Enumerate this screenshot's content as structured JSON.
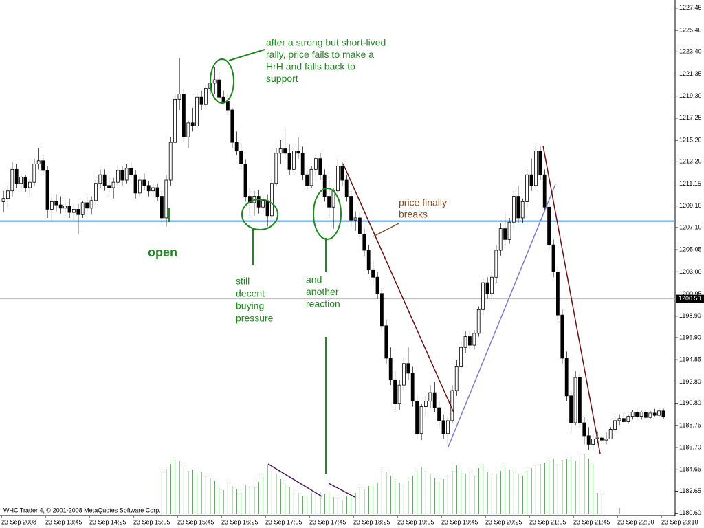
{
  "chart_data": {
    "type": "candlestick",
    "footer": "WHC Trader 4, © 2001-2008 MetaQuotes Software Corp.",
    "categories": [
      "23 Sep 2008",
      null,
      null,
      null,
      null,
      null,
      null,
      null,
      null,
      null,
      "23 Sep 13:45",
      null,
      null,
      null,
      null,
      null,
      null,
      null,
      null,
      null,
      "23 Sep 14:25",
      null,
      null,
      null,
      null,
      null,
      null,
      null,
      null,
      null,
      "23 Sep 15:05",
      null,
      null,
      null,
      null,
      null,
      null,
      null,
      null,
      null,
      "23 Sep 15:45",
      null,
      null,
      null,
      null,
      null,
      null,
      null,
      null,
      null,
      "23 Sep 16:25",
      null,
      null,
      null,
      null,
      null,
      null,
      null,
      null,
      null,
      "23 Sep 17:05",
      null,
      null,
      null,
      null,
      null,
      null,
      null,
      null,
      null,
      "23 Sep 17:45",
      null,
      null,
      null,
      null,
      null,
      null,
      null,
      null,
      null,
      "23 Sep 18:25",
      null,
      null,
      null,
      null,
      null,
      null,
      null,
      null,
      null,
      "23 Sep 19:05",
      null,
      null,
      null,
      null,
      null,
      null,
      null,
      null,
      null,
      "23 Sep 19:45",
      null,
      null,
      null,
      null,
      null,
      null,
      null,
      null,
      null,
      "23 Sep 20:25",
      null,
      null,
      null,
      null,
      null,
      null,
      null,
      null,
      null,
      "23 Sep 21:05",
      null,
      null,
      null,
      null,
      null,
      null,
      null,
      null,
      null,
      "23 Sep 21:45",
      null,
      null,
      null,
      null,
      null,
      null,
      null,
      null,
      null,
      "23 Sep 22:30",
      null,
      null,
      null,
      null,
      null,
      null,
      null,
      null,
      null,
      "23 Sep 23:10"
    ],
    "candles": [
      [
        1209.5,
        1210.5,
        1208.5,
        1209.8
      ],
      [
        1209.8,
        1211,
        1209,
        1210.5
      ],
      [
        1210.5,
        1213.2,
        1210,
        1212.5
      ],
      [
        1212.5,
        1213,
        1210.8,
        1211.2
      ],
      [
        1211.2,
        1212.2,
        1210.5,
        1211.8
      ],
      [
        1211.8,
        1212,
        1210.4,
        1210.8
      ],
      [
        1210.8,
        1211.6,
        1210.2,
        1211.3
      ],
      [
        1211.3,
        1213.5,
        1211,
        1213
      ],
      [
        1213,
        1214.5,
        1212.5,
        1213.3
      ],
      [
        1213.3,
        1213.8,
        1212,
        1212.4
      ],
      [
        1212.4,
        1212.8,
        1208,
        1208.8
      ],
      [
        1208.8,
        1210,
        1207.8,
        1209.5
      ],
      [
        1209.5,
        1210.2,
        1208.6,
        1209.2
      ],
      [
        1209.2,
        1210,
        1208.4,
        1208.9
      ],
      [
        1208.9,
        1209.5,
        1208.2,
        1209.1
      ],
      [
        1209.1,
        1209.8,
        1208,
        1208.5
      ],
      [
        1208.5,
        1209.2,
        1207.8,
        1208.8
      ],
      [
        1208.8,
        1209.3,
        1206.5,
        1208.3
      ],
      [
        1208.3,
        1209.6,
        1208,
        1209.4
      ],
      [
        1209.4,
        1209.9,
        1208.5,
        1208.9
      ],
      [
        1208.9,
        1210,
        1208.3,
        1209.6
      ],
      [
        1209.6,
        1211.5,
        1209.2,
        1211.2
      ],
      [
        1211.2,
        1212.5,
        1210.8,
        1212
      ],
      [
        1212,
        1212.5,
        1210.5,
        1211
      ],
      [
        1211,
        1211.8,
        1210.3,
        1210.8
      ],
      [
        1210.8,
        1211.7,
        1209.8,
        1211.3
      ],
      [
        1211.3,
        1212.8,
        1211,
        1212.4
      ],
      [
        1212.4,
        1212.8,
        1211,
        1211.5
      ],
      [
        1211.5,
        1213,
        1211.2,
        1212.6
      ],
      [
        1212.6,
        1213.2,
        1211.8,
        1212
      ],
      [
        1212,
        1212.4,
        1209.8,
        1210.3
      ],
      [
        1210.3,
        1211.8,
        1210,
        1211.5
      ],
      [
        1211.5,
        1212.1,
        1210.6,
        1211
      ],
      [
        1211,
        1211.4,
        1210,
        1210.5
      ],
      [
        1210.5,
        1211.2,
        1210,
        1210.8
      ],
      [
        1210.8,
        1211.2,
        1209.6,
        1210
      ],
      [
        1210,
        1210.5,
        1207.5,
        1208
      ],
      [
        1208,
        1212,
        1207.2,
        1211.5
      ],
      [
        1211.5,
        1215.5,
        1211,
        1215
      ],
      [
        1215,
        1219.5,
        1214.8,
        1219
      ],
      [
        1219,
        1222.8,
        1218,
        1219.5
      ],
      [
        1219.5,
        1220,
        1215,
        1215.5
      ],
      [
        1215.5,
        1217,
        1214.5,
        1216.8
      ],
      [
        1216.8,
        1218.2,
        1216,
        1216.5
      ],
      [
        1216.5,
        1219.6,
        1216.2,
        1219.2
      ],
      [
        1219.2,
        1219.8,
        1218,
        1218.5
      ],
      [
        1218.5,
        1220.3,
        1218.2,
        1220
      ],
      [
        1220,
        1221.3,
        1219.5,
        1220.5
      ],
      [
        1220.5,
        1222,
        1219.5,
        1220.8
      ],
      [
        1220.8,
        1221.5,
        1218.8,
        1219.2
      ],
      [
        1219.2,
        1219.8,
        1218.5,
        1218.8
      ],
      [
        1218.8,
        1219.5,
        1217.5,
        1218
      ],
      [
        1218,
        1218.2,
        1214.5,
        1215
      ],
      [
        1215,
        1216,
        1213.8,
        1214.2
      ],
      [
        1214.2,
        1214.8,
        1212.5,
        1213
      ],
      [
        1213,
        1213.4,
        1209.5,
        1210
      ],
      [
        1210,
        1210.8,
        1208,
        1209.4
      ],
      [
        1209.4,
        1210.5,
        1208.2,
        1210
      ],
      [
        1210,
        1210.6,
        1208.4,
        1209
      ],
      [
        1209,
        1210,
        1208.5,
        1209.6
      ],
      [
        1209.6,
        1210.2,
        1207.2,
        1208.2
      ],
      [
        1208.2,
        1211.6,
        1207.8,
        1211.2
      ],
      [
        1211.2,
        1214.5,
        1211,
        1214
      ],
      [
        1214,
        1215.2,
        1213,
        1214.4
      ],
      [
        1214.4,
        1216.2,
        1213.5,
        1214
      ],
      [
        1214,
        1214.8,
        1212,
        1212.5
      ],
      [
        1212.5,
        1214.5,
        1212.2,
        1214.2
      ],
      [
        1214.2,
        1215.5,
        1213.5,
        1214
      ],
      [
        1214,
        1214.6,
        1211.5,
        1212
      ],
      [
        1212,
        1212.6,
        1210.5,
        1211
      ],
      [
        1211,
        1212.8,
        1210.8,
        1212.5
      ],
      [
        1212.5,
        1213.8,
        1211.8,
        1213.5
      ],
      [
        1213.5,
        1214,
        1211.5,
        1212
      ],
      [
        1212,
        1212.5,
        1209.5,
        1210
      ],
      [
        1210,
        1211.5,
        1208,
        1209
      ],
      [
        1209,
        1210.8,
        1207,
        1210.5
      ],
      [
        1210.5,
        1213.5,
        1210.2,
        1212.8
      ],
      [
        1212.8,
        1213.2,
        1211,
        1211.5
      ],
      [
        1211.5,
        1212,
        1209.5,
        1210
      ],
      [
        1210,
        1210.5,
        1207.2,
        1207.8
      ],
      [
        1207.8,
        1208.6,
        1206.8,
        1208
      ],
      [
        1208,
        1208.5,
        1206,
        1206.5
      ],
      [
        1206.5,
        1207,
        1204.5,
        1205
      ],
      [
        1205,
        1205.5,
        1202.8,
        1203.2
      ],
      [
        1203.2,
        1204,
        1202,
        1202.5
      ],
      [
        1202.5,
        1203,
        1200.5,
        1201
      ],
      [
        1201,
        1201.5,
        1197.5,
        1198
      ],
      [
        1198,
        1198.6,
        1194.5,
        1195
      ],
      [
        1195,
        1196,
        1192.5,
        1193
      ],
      [
        1193,
        1193.8,
        1190,
        1190.8
      ],
      [
        1190.8,
        1193,
        1190.2,
        1192.5
      ],
      [
        1192.5,
        1195,
        1192,
        1194.5
      ],
      [
        1194.5,
        1196,
        1193,
        1193.6
      ],
      [
        1193.6,
        1194.2,
        1190.5,
        1191
      ],
      [
        1191,
        1191.6,
        1187.5,
        1188
      ],
      [
        1188,
        1190.8,
        1187.4,
        1190.5
      ],
      [
        1190.5,
        1191.5,
        1189.6,
        1191
      ],
      [
        1191,
        1192.5,
        1190.4,
        1191.8
      ],
      [
        1191.8,
        1192.8,
        1190,
        1190.4
      ],
      [
        1190.4,
        1191,
        1188.6,
        1189.2
      ],
      [
        1189.2,
        1189.8,
        1187.5,
        1188
      ],
      [
        1188,
        1189.6,
        1187,
        1189.2
      ],
      [
        1189.2,
        1192.5,
        1189,
        1192
      ],
      [
        1192,
        1194.8,
        1191.5,
        1194.2
      ],
      [
        1194.2,
        1196.5,
        1194,
        1196
      ],
      [
        1196,
        1197.5,
        1195.5,
        1197
      ],
      [
        1197,
        1197.5,
        1195.8,
        1196.2
      ],
      [
        1196.2,
        1197.6,
        1195.8,
        1197.3
      ],
      [
        1197.3,
        1199.8,
        1197,
        1199.5
      ],
      [
        1199.5,
        1202.5,
        1199,
        1202
      ],
      [
        1202,
        1202.5,
        1200.5,
        1201
      ],
      [
        1201,
        1203,
        1200.5,
        1202.5
      ],
      [
        1202.5,
        1205.5,
        1202,
        1205
      ],
      [
        1205,
        1207.5,
        1204.5,
        1207
      ],
      [
        1207,
        1208.6,
        1205.5,
        1206
      ],
      [
        1206,
        1208,
        1205.6,
        1207.6
      ],
      [
        1207.6,
        1210.5,
        1207,
        1210
      ],
      [
        1210,
        1211,
        1207.5,
        1208
      ],
      [
        1208,
        1209.8,
        1207.5,
        1209.5
      ],
      [
        1209.5,
        1212.5,
        1209,
        1212
      ],
      [
        1212,
        1213.5,
        1210.5,
        1211
      ],
      [
        1211,
        1214.6,
        1210.8,
        1214.2
      ],
      [
        1214.2,
        1214.6,
        1211.5,
        1212
      ],
      [
        1212,
        1212.5,
        1208.5,
        1209
      ],
      [
        1209,
        1209.5,
        1205,
        1205.5
      ],
      [
        1205.5,
        1206,
        1202.5,
        1203
      ],
      [
        1203,
        1203.5,
        1198.5,
        1199
      ],
      [
        1199,
        1199.5,
        1194.5,
        1195
      ],
      [
        1195,
        1195.6,
        1191,
        1191.5
      ],
      [
        1191.5,
        1192,
        1188.2,
        1189
      ],
      [
        1189,
        1193.8,
        1188.8,
        1193.2
      ],
      [
        1193.2,
        1193.6,
        1188.5,
        1189
      ],
      [
        1189,
        1189.5,
        1187,
        1187.8
      ],
      [
        1187.8,
        1188.6,
        1186.5,
        1187
      ],
      [
        1187,
        1187.9,
        1186.4,
        1187.5
      ],
      [
        1187.5,
        1188.2,
        1187.1,
        1187.6
      ],
      [
        1187.6,
        1187.8,
        1187.2,
        1187.4
      ],
      [
        1187.4,
        1188.1,
        1187,
        1187.5
      ],
      [
        1187.5,
        1188.6,
        1187.5,
        1188.4
      ],
      [
        1188.4,
        1189.5,
        1188.2,
        1189.2
      ],
      [
        1189.2,
        1189.8,
        1188.8,
        1189.4
      ],
      [
        1189.4,
        1189.9,
        1189,
        1189.1
      ],
      [
        1189.1,
        1189.8,
        1188.9,
        1189.6
      ],
      [
        1189.6,
        1190.2,
        1189.3,
        1190
      ],
      [
        1190,
        1190.3,
        1189.4,
        1189.6
      ],
      [
        1189.6,
        1190.1,
        1189.3,
        1190
      ],
      [
        1190,
        1190.2,
        1189.4,
        1189.5
      ],
      [
        1189.5,
        1190.1,
        1189.4,
        1189.9
      ],
      [
        1189.9,
        1190.3,
        1189.6,
        1189.7
      ],
      [
        1189.7,
        1190.4,
        1189.5,
        1190.1
      ],
      [
        1190.1,
        1190.3,
        1189.4,
        1189.6
      ]
    ],
    "volume": [
      0,
      0,
      0,
      0,
      0,
      0,
      0,
      0,
      0,
      0,
      0,
      0,
      0,
      0,
      0,
      0,
      0,
      0,
      0,
      0,
      0,
      0,
      0,
      0,
      0,
      0,
      0,
      0,
      0,
      0,
      0,
      0,
      0,
      0,
      0,
      0,
      60,
      65,
      72,
      80,
      76,
      68,
      62,
      64,
      58,
      60,
      54,
      52,
      48,
      40,
      34,
      44,
      40,
      36,
      30,
      42,
      40,
      38,
      46,
      55,
      70,
      62,
      58,
      50,
      45,
      38,
      33,
      30,
      26,
      22,
      30,
      28,
      32,
      28,
      30,
      24,
      22,
      20,
      25,
      28,
      30,
      38,
      36,
      40,
      42,
      44,
      65,
      60,
      55,
      50,
      45,
      42,
      48,
      55,
      60,
      68,
      64,
      58,
      52,
      46,
      50,
      56,
      62,
      70,
      64,
      58,
      60,
      54,
      66,
      72,
      60,
      55,
      58,
      62,
      68,
      64,
      60,
      58,
      55,
      62,
      66,
      70,
      72,
      74,
      76,
      80,
      72,
      78,
      80,
      82,
      76,
      84,
      86,
      80,
      72,
      30,
      28,
      0,
      0,
      0,
      8,
      0,
      0,
      0,
      0,
      0,
      0,
      0,
      0,
      0,
      0
    ],
    "volume_color": "#2e7d2e",
    "ylim": [
      1180.4,
      1228.2
    ],
    "yticks": [
      1227.45,
      {
        "value": 1225.4,
        "label": "1225.40"
      },
      {
        "value": 1223.4,
        "label": "1223.40"
      },
      1221.35,
      {
        "value": 1219.3,
        "label": "1219.30"
      },
      1217.25,
      {
        "value": 1215.2,
        "label": "1215.20"
      },
      {
        "value": 1213.2,
        "label": "1213.20"
      },
      1211.15,
      {
        "value": 1209.1,
        "label": "1209.10"
      },
      {
        "value": 1207.1,
        "label": "1207.10"
      },
      1205.05,
      {
        "value": 1203,
        "label": "1203.00"
      },
      1200.95,
      {
        "value": 1198.9,
        "label": "1198.90"
      },
      {
        "value": 1196.9,
        "label": "1196.90"
      },
      1194.85,
      {
        "value": 1192.8,
        "label": "1192.80"
      },
      {
        "value": 1190.8,
        "label": "1190.80"
      },
      1188.75,
      {
        "value": 1186.7,
        "label": "1186.70"
      },
      1184.65,
      1182.65,
      {
        "value": 1180.6,
        "label": "1180.60"
      }
    ],
    "support_level": {
      "value": 1207.7,
      "color": "#3d94e8"
    },
    "current_price": {
      "value": 1200.5,
      "label": "1200.50"
    },
    "annotations": [
      {
        "lines": [
          "after a strong but short-lived",
          "rally, price fails to make a",
          "HrH and falls back to",
          "support"
        ],
        "color": "#1e8a1e"
      },
      {
        "lines": [
          "open"
        ],
        "color": "#1e8a1e"
      },
      {
        "lines": [
          "still",
          "decent",
          "buying",
          "pressure"
        ],
        "color": "#1e8a1e"
      },
      {
        "lines": [
          "and",
          "another",
          "reaction"
        ],
        "color": "#1e8a1e"
      },
      {
        "lines": [
          "price finally",
          "breaks"
        ],
        "color": "#8b4a1e"
      }
    ]
  }
}
